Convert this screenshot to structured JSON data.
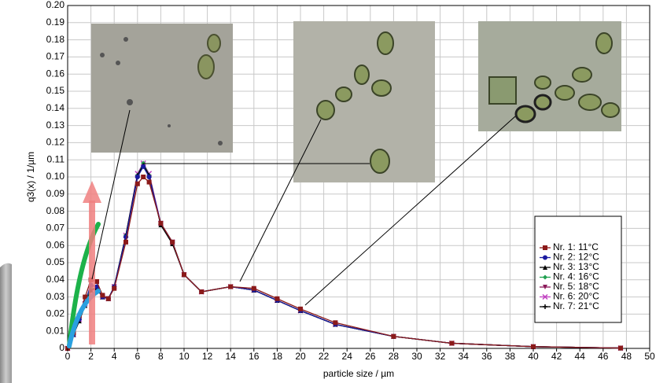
{
  "chart_data": {
    "type": "line",
    "x_label": "particle size / µm",
    "y_label": "q3(x) / 1/µm",
    "x": [
      0,
      0.5,
      1,
      1.5,
      2,
      2.5,
      3,
      3.5,
      4,
      5,
      6,
      6.5,
      7,
      8,
      9,
      10,
      11.5,
      14,
      16,
      18,
      20,
      23,
      28,
      33,
      40,
      47.5
    ],
    "series": [
      {
        "name": "Nr. 1: 11°C",
        "color": "#8b1a1a",
        "marker": "square",
        "values": [
          0,
          0.009,
          0.019,
          0.03,
          0.04,
          0.039,
          0.031,
          0.029,
          0.035,
          0.062,
          0.096,
          0.1,
          0.097,
          0.073,
          0.062,
          0.043,
          0.033,
          0.036,
          0.035,
          0.029,
          0.023,
          0.015,
          0.007,
          0.003,
          0.001,
          0.0002
        ]
      },
      {
        "name": "Nr. 2: 12°C",
        "color": "#1a1aa0",
        "marker": "circle",
        "values": [
          0,
          0.008,
          0.017,
          0.027,
          0.037,
          0.036,
          0.03,
          0.029,
          0.036,
          0.065,
          0.1,
          0.106,
          0.1,
          0.073,
          0.062,
          0.043,
          0.033,
          0.036,
          0.034,
          0.028,
          0.022,
          0.014,
          0.007,
          0.003,
          0.001,
          0.0002
        ]
      },
      {
        "name": "Nr. 3: 13°C",
        "color": "#000000",
        "marker": "triangle",
        "values": [
          0,
          0.008,
          0.016,
          0.025,
          0.034,
          0.035,
          0.03,
          0.029,
          0.036,
          0.066,
          0.101,
          0.107,
          0.101,
          0.072,
          0.061,
          0.043,
          0.033,
          0.036,
          0.034,
          0.028,
          0.022,
          0.014,
          0.007,
          0.003,
          0.001,
          0.0002
        ]
      },
      {
        "name": "Nr. 4: 16°C",
        "color": "#20a050",
        "marker": "diamond",
        "values": [
          0,
          0.008,
          0.017,
          0.026,
          0.035,
          0.035,
          0.03,
          0.029,
          0.036,
          0.066,
          0.101,
          0.108,
          0.101,
          0.072,
          0.062,
          0.043,
          0.033,
          0.036,
          0.034,
          0.028,
          0.022,
          0.014,
          0.007,
          0.003,
          0.001,
          0.0002
        ]
      },
      {
        "name": "Nr. 5: 18°C",
        "color": "#8b1a5a",
        "marker": "triangle-down",
        "values": [
          0,
          0.008,
          0.017,
          0.026,
          0.035,
          0.035,
          0.03,
          0.029,
          0.036,
          0.065,
          0.1,
          0.107,
          0.1,
          0.072,
          0.062,
          0.043,
          0.033,
          0.036,
          0.034,
          0.028,
          0.022,
          0.014,
          0.007,
          0.003,
          0.001,
          0.0002
        ]
      },
      {
        "name": "Nr. 6: 20°C",
        "color": "#c040c0",
        "marker": "x",
        "values": [
          0,
          0.008,
          0.017,
          0.026,
          0.035,
          0.035,
          0.03,
          0.029,
          0.036,
          0.066,
          0.102,
          0.108,
          0.102,
          0.073,
          0.062,
          0.043,
          0.033,
          0.036,
          0.034,
          0.028,
          0.022,
          0.014,
          0.007,
          0.003,
          0.001,
          0.0002
        ]
      },
      {
        "name": "Nr. 7: 21°C",
        "color": "#000000",
        "marker": "plus",
        "values": [
          0,
          0.008,
          0.017,
          0.026,
          0.034,
          0.035,
          0.03,
          0.029,
          0.036,
          0.065,
          0.1,
          0.107,
          0.1,
          0.072,
          0.062,
          0.043,
          0.033,
          0.036,
          0.034,
          0.028,
          0.022,
          0.014,
          0.007,
          0.003,
          0.001,
          0.0002
        ]
      }
    ],
    "xlim": [
      0,
      50
    ],
    "xticks": [
      0,
      2,
      4,
      6,
      8,
      10,
      12,
      14,
      16,
      18,
      20,
      22,
      24,
      26,
      28,
      30,
      32,
      34,
      36,
      38,
      40,
      42,
      44,
      46,
      48,
      50
    ],
    "ylim": [
      0,
      0.2
    ],
    "yticks": [
      0,
      0.01,
      0.02,
      0.03,
      0.04,
      0.05,
      0.06,
      0.07,
      0.08,
      0.09,
      {
        "value": 0.1,
        "label": "0.10"
      },
      0.11,
      0.12,
      0.13,
      0.14,
      0.15,
      0.16,
      0.17,
      0.18,
      0.19,
      {
        "value": 0.2,
        "label": "0.20"
      }
    ],
    "grid": true
  }
}
